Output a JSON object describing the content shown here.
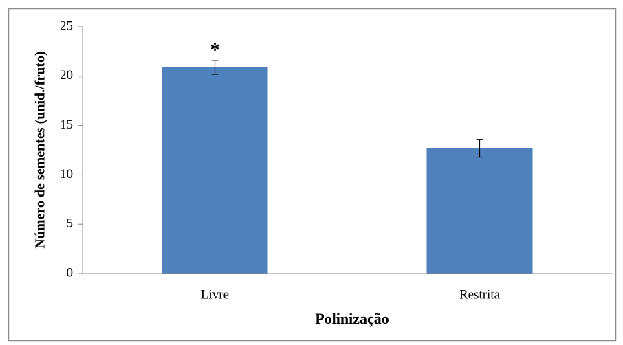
{
  "chart_data": {
    "type": "bar",
    "x_label": "Polinização",
    "y_label": "Número de sementes (unid./fruto)",
    "categories": [
      "Livre",
      "Restrita"
    ],
    "values": [
      20.9,
      12.7
    ],
    "errors": [
      0.7,
      0.9
    ],
    "value_annotations": [
      "*",
      null
    ],
    "color": "#4f81bd",
    "ylim": [
      0,
      25
    ],
    "yticks": [
      0,
      5,
      10,
      15,
      20,
      25
    ],
    "grid": false
  }
}
